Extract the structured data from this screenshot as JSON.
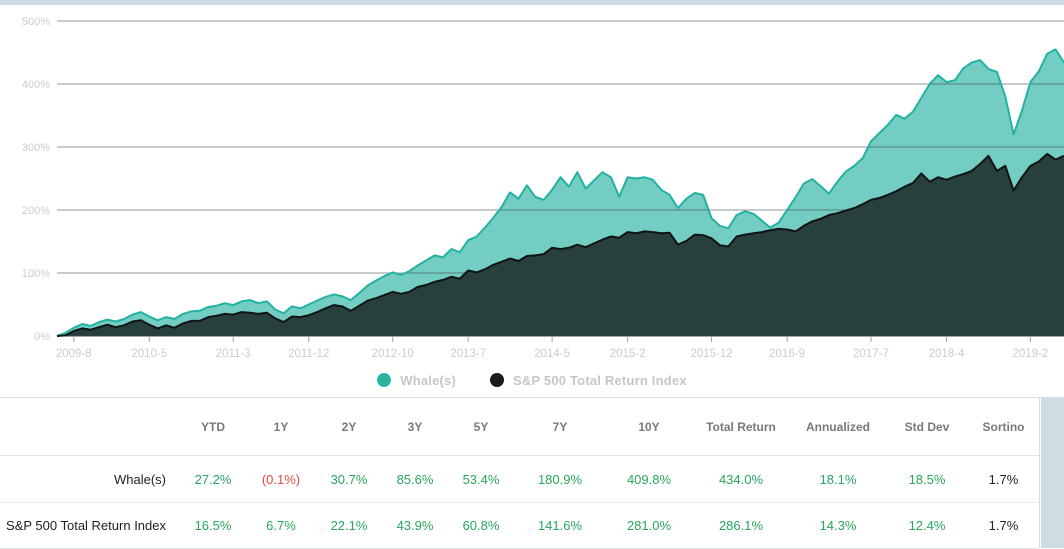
{
  "page": {
    "background": "#ffffff",
    "gutter_color": "#cfdce3"
  },
  "chart": {
    "y_tick_labels": [
      "500%",
      "400%",
      "300%",
      "200%",
      "100%",
      "0%"
    ],
    "x_tick_labels": [
      "2009-8",
      "2010-5",
      "2011-3",
      "2011-12",
      "2012-10",
      "2013-7",
      "2014-5",
      "2015-2",
      "2015-12",
      "2016-9",
      "2017-7",
      "2018-4",
      "2019-2"
    ],
    "axis_label_color": "#c9cdd0",
    "gridline_color": "rgba(58,64,65,0.55)",
    "baseline_color": "#555a5c",
    "tick_color": "#9aa0a3"
  },
  "chart_data": {
    "type": "area",
    "title": "",
    "xlabel": "",
    "ylabel": "",
    "ylim": [
      0,
      500
    ],
    "y_step": 100,
    "grid": true,
    "legend_position": "bottom",
    "x_start": "2009-06",
    "x_interval": "monthly",
    "x_tick_labels": [
      "2009-8",
      "2010-5",
      "2011-3",
      "2011-12",
      "2012-10",
      "2013-7",
      "2014-5",
      "2015-2",
      "2015-12",
      "2016-9",
      "2017-7",
      "2018-4",
      "2019-2"
    ],
    "x_tick_indices": [
      2,
      11,
      21,
      30,
      40,
      49,
      59,
      68,
      78,
      87,
      97,
      106,
      116
    ],
    "series": [
      {
        "name": "Whale(s)",
        "line_color": "#23b2a1",
        "fill_color": "rgba(43,179,162,0.66)",
        "values": [
          0,
          5,
          13,
          19,
          16,
          22,
          26,
          23,
          27,
          34,
          38,
          31,
          25,
          30,
          27,
          35,
          39,
          40,
          46,
          48,
          52,
          49,
          55,
          57,
          52,
          55,
          42,
          36,
          47,
          44,
          50,
          56,
          62,
          66,
          63,
          57,
          68,
          80,
          88,
          95,
          101,
          97,
          103,
          112,
          120,
          128,
          125,
          138,
          133,
          152,
          158,
          172,
          188,
          205,
          228,
          218,
          239,
          221,
          216,
          232,
          252,
          237,
          260,
          234,
          247,
          260,
          252,
          221,
          252,
          250,
          252,
          248,
          232,
          224,
          203,
          218,
          227,
          224,
          187,
          175,
          171,
          192,
          198,
          194,
          183,
          172,
          180,
          200,
          220,
          242,
          249,
          238,
          226,
          245,
          261,
          270,
          282,
          309,
          322,
          335,
          351,
          345,
          356,
          378,
          400,
          414,
          403,
          406,
          425,
          434,
          438,
          424,
          419,
          380,
          320,
          358,
          403,
          420,
          448,
          455,
          434
        ]
      },
      {
        "name": "S&P 500 Total Return Index",
        "line_color": "#101415",
        "fill_color": "#27403c",
        "values": [
          0,
          1,
          8,
          12,
          10,
          14,
          18,
          14,
          17,
          23,
          25,
          18,
          12,
          17,
          13,
          20,
          24,
          24,
          30,
          32,
          35,
          34,
          38,
          37,
          35,
          37,
          28,
          22,
          31,
          30,
          33,
          38,
          44,
          49,
          47,
          40,
          48,
          56,
          60,
          65,
          70,
          67,
          70,
          78,
          81,
          86,
          89,
          94,
          91,
          104,
          101,
          106,
          113,
          118,
          123,
          119,
          127,
          128,
          130,
          140,
          138,
          140,
          145,
          141,
          147,
          153,
          158,
          156,
          165,
          163,
          166,
          165,
          163,
          164,
          145,
          151,
          161,
          160,
          155,
          144,
          142,
          158,
          161,
          163,
          165,
          168,
          170,
          169,
          166,
          175,
          182,
          186,
          192,
          195,
          199,
          203,
          209,
          216,
          219,
          224,
          230,
          237,
          243,
          258,
          245,
          252,
          248,
          253,
          257,
          262,
          273,
          286,
          262,
          270,
          231,
          252,
          270,
          277,
          289,
          280,
          286
        ]
      }
    ]
  },
  "legend": {
    "items": [
      {
        "label": "Whale(s)",
        "color": "#2bb3a2"
      },
      {
        "label": "S&P 500 Total Return Index",
        "color": "#1a1a1a"
      }
    ]
  },
  "table": {
    "headers": [
      "YTD",
      "1Y",
      "2Y",
      "3Y",
      "5Y",
      "7Y",
      "10Y",
      "Total Return",
      "Annualized",
      "Std Dev",
      "Sortino"
    ],
    "value_colors": {
      "green": "#27a65d",
      "red": "#e2483d",
      "dark": "#212325"
    },
    "rows": [
      {
        "label": "Whale(s)",
        "cells": [
          {
            "text": "27.2%",
            "color": "green"
          },
          {
            "text": "(0.1%)",
            "color": "red"
          },
          {
            "text": "30.7%",
            "color": "green"
          },
          {
            "text": "85.6%",
            "color": "green"
          },
          {
            "text": "53.4%",
            "color": "green"
          },
          {
            "text": "180.9%",
            "color": "green"
          },
          {
            "text": "409.8%",
            "color": "green"
          },
          {
            "text": "434.0%",
            "color": "green"
          },
          {
            "text": "18.1%",
            "color": "green"
          },
          {
            "text": "18.5%",
            "color": "green"
          },
          {
            "text": "1.7%",
            "color": "dark"
          }
        ]
      },
      {
        "label": "S&P 500 Total Return Index",
        "cells": [
          {
            "text": "16.5%",
            "color": "green"
          },
          {
            "text": "6.7%",
            "color": "green"
          },
          {
            "text": "22.1%",
            "color": "green"
          },
          {
            "text": "43.9%",
            "color": "green"
          },
          {
            "text": "60.8%",
            "color": "green"
          },
          {
            "text": "141.6%",
            "color": "green"
          },
          {
            "text": "281.0%",
            "color": "green"
          },
          {
            "text": "286.1%",
            "color": "green"
          },
          {
            "text": "14.3%",
            "color": "green"
          },
          {
            "text": "12.4%",
            "color": "green"
          },
          {
            "text": "1.7%",
            "color": "dark"
          }
        ]
      }
    ]
  }
}
